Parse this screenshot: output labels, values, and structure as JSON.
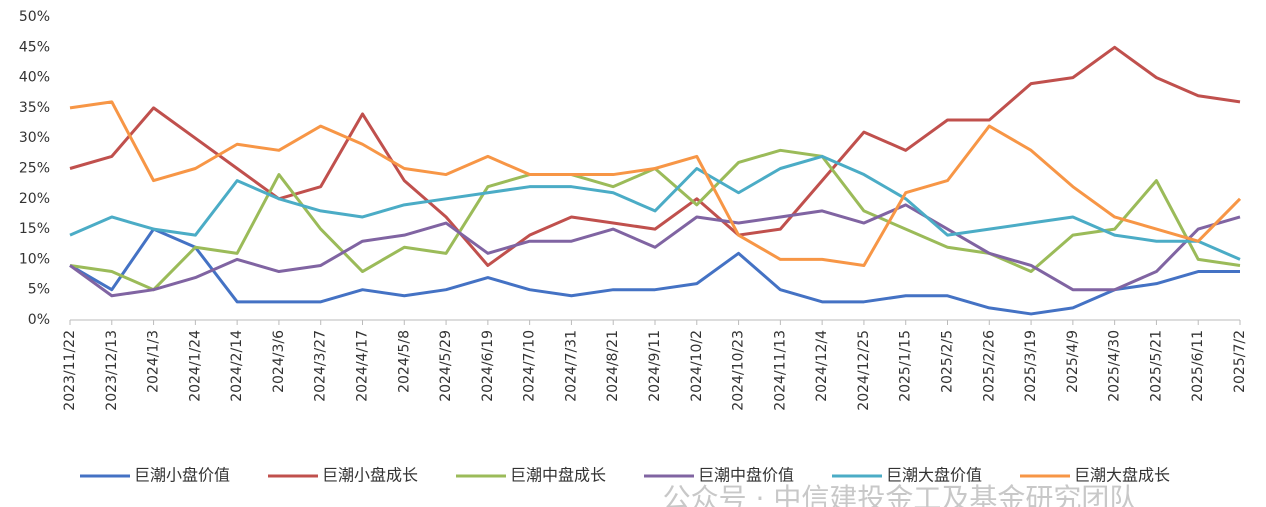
{
  "chart_data": {
    "type": "line",
    "x": [
      "2023/11/22",
      "2023/12/13",
      "2024/1/3",
      "2024/1/24",
      "2024/2/14",
      "2024/3/6",
      "2024/3/27",
      "2024/4/17",
      "2024/5/8",
      "2024/5/29",
      "2024/6/19",
      "2024/7/10",
      "2024/7/31",
      "2024/8/21",
      "2024/9/11",
      "2024/10/2",
      "2024/10/23",
      "2024/11/13",
      "2024/12/4",
      "2024/12/25",
      "2025/1/15",
      "2025/2/5",
      "2025/2/26",
      "2025/3/19",
      "2025/4/9",
      "2025/4/30",
      "2025/5/21",
      "2025/6/11",
      "2025/7/2"
    ],
    "series": [
      {
        "name": "巨潮小盘价值",
        "color": "#4472c4",
        "values": [
          9,
          5,
          15,
          12,
          3,
          3,
          3,
          5,
          4,
          5,
          7,
          5,
          4,
          5,
          5,
          6,
          11,
          5,
          3,
          3,
          4,
          4,
          2,
          1,
          2,
          5,
          6,
          8,
          8
        ]
      },
      {
        "name": "巨潮小盘成长",
        "color": "#c0504d",
        "values": [
          25,
          27,
          35,
          30,
          25,
          20,
          22,
          34,
          23,
          17,
          9,
          14,
          17,
          16,
          15,
          20,
          14,
          15,
          23,
          31,
          28,
          33,
          33,
          39,
          40,
          45,
          40,
          37,
          36
        ]
      },
      {
        "name": "巨潮中盘成长",
        "color": "#9bbb59",
        "values": [
          9,
          8,
          5,
          12,
          11,
          24,
          15,
          8,
          12,
          11,
          22,
          24,
          24,
          22,
          25,
          19,
          26,
          28,
          27,
          18,
          15,
          12,
          11,
          8,
          14,
          15,
          23,
          10,
          9
        ]
      },
      {
        "name": "巨潮中盘价值",
        "color": "#8064a2",
        "values": [
          9,
          4,
          5,
          7,
          10,
          8,
          9,
          13,
          14,
          16,
          11,
          13,
          13,
          15,
          12,
          17,
          16,
          17,
          18,
          16,
          19,
          15,
          11,
          9,
          5,
          5,
          8,
          15,
          17
        ]
      },
      {
        "name": "巨潮大盘价值",
        "color": "#4bacc6",
        "values": [
          14,
          17,
          15,
          14,
          23,
          20,
          18,
          17,
          19,
          20,
          21,
          22,
          22,
          21,
          18,
          25,
          21,
          25,
          27,
          24,
          20,
          14,
          15,
          16,
          17,
          14,
          13,
          13,
          10
        ]
      },
      {
        "name": "巨潮大盘成长",
        "color": "#f79646",
        "values": [
          35,
          36,
          23,
          25,
          29,
          28,
          32,
          29,
          25,
          24,
          27,
          24,
          24,
          24,
          25,
          27,
          14,
          10,
          10,
          9,
          21,
          23,
          32,
          28,
          22,
          17,
          15,
          13,
          20
        ]
      }
    ],
    "ylim": [
      0,
      50
    ],
    "yticks": [
      {
        "value": 0,
        "label": "0%"
      },
      {
        "value": 5,
        "label": "5%"
      },
      {
        "value": 10,
        "label": "10%"
      },
      {
        "value": 15,
        "label": "15%"
      },
      {
        "value": 20,
        "label": "20%"
      },
      {
        "value": 25,
        "label": "25%"
      },
      {
        "value": 30,
        "label": "30%"
      },
      {
        "value": 35,
        "label": "35%"
      },
      {
        "value": 40,
        "label": "40%"
      },
      {
        "value": 45,
        "label": "45%"
      },
      {
        "value": 50,
        "label": "50%"
      }
    ],
    "watermark": "公众号 · 中信建投金工及基金研究团队"
  }
}
